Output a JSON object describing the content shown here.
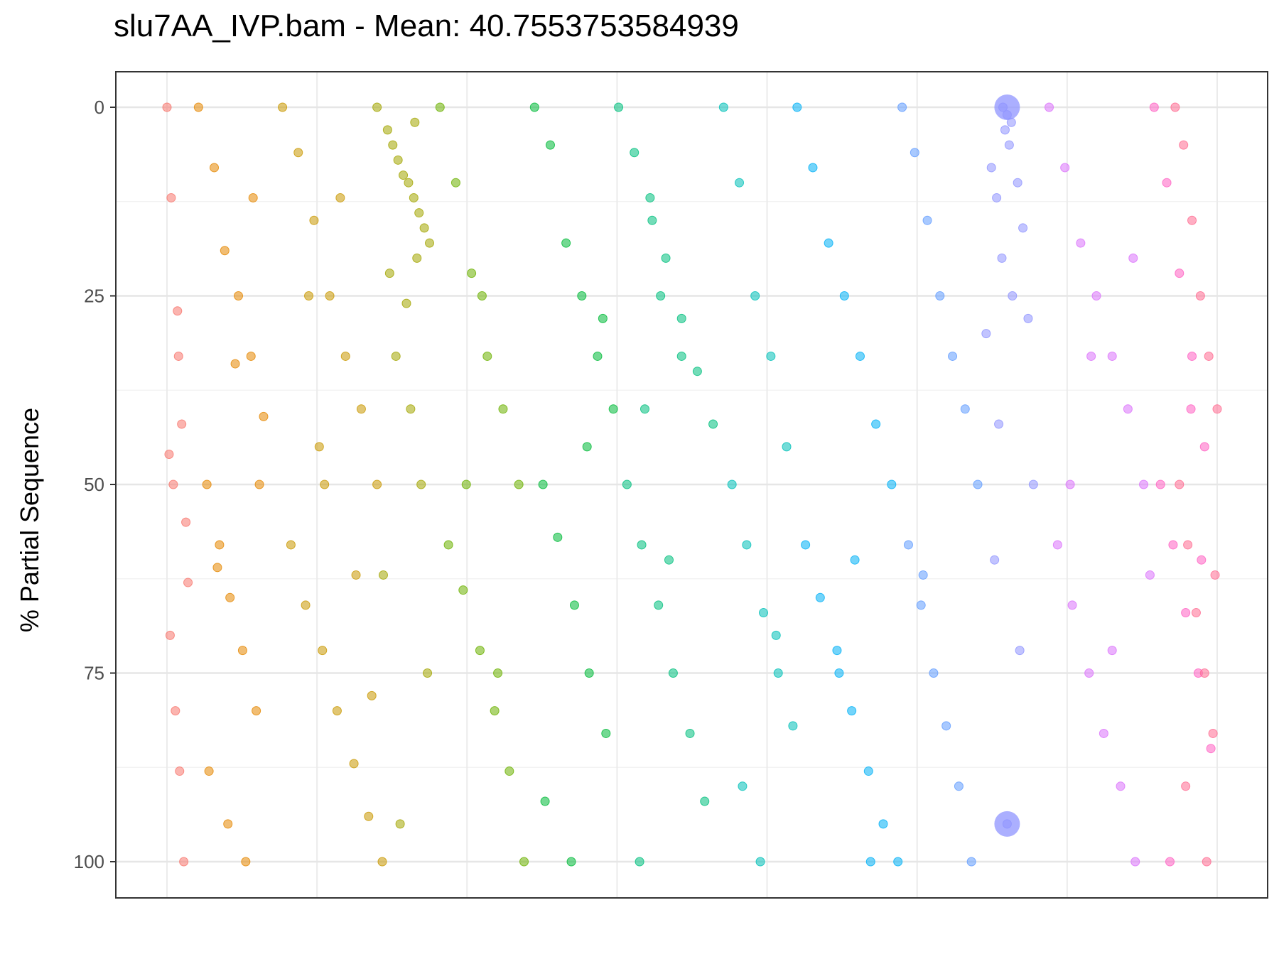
{
  "chart_data": {
    "type": "scatter",
    "title": "slu7AA_IVP.bam - Mean: 40.7553753584939",
    "xlabel": "",
    "ylabel": "% Partial Sequence",
    "ylim": [
      0,
      100
    ],
    "y_reversed": true,
    "y_ticks": [
      "0",
      "25",
      "50",
      "75",
      "100"
    ],
    "x_ticks": [],
    "grid": true,
    "point_alpha": 0.55,
    "series": [
      {
        "color": "#F8766D",
        "x": [
          0.0,
          0.004,
          0.01,
          0.014,
          0.018,
          0.02,
          0.003,
          0.008,
          0.012,
          0.016,
          0.006,
          0.002,
          0.011
        ],
        "y": [
          0,
          12,
          27,
          42,
          55,
          63,
          70,
          80,
          88,
          100,
          50,
          46,
          33
        ]
      },
      {
        "color": "#E58700",
        "x": [
          0.03,
          0.045,
          0.055,
          0.068,
          0.08,
          0.092,
          0.038,
          0.05,
          0.06,
          0.072,
          0.085,
          0.04,
          0.058,
          0.075,
          0.088,
          0.065,
          0.048,
          0.082
        ],
        "y": [
          0,
          8,
          19,
          25,
          33,
          41,
          50,
          58,
          65,
          72,
          80,
          88,
          95,
          100,
          50,
          34,
          61,
          12
        ]
      },
      {
        "color": "#C99800",
        "x": [
          0.11,
          0.125,
          0.14,
          0.155,
          0.17,
          0.185,
          0.2,
          0.118,
          0.132,
          0.148,
          0.162,
          0.178,
          0.192,
          0.205,
          0.135,
          0.15,
          0.165,
          0.18,
          0.195,
          0.145
        ],
        "y": [
          0,
          6,
          15,
          25,
          33,
          40,
          50,
          58,
          66,
          72,
          80,
          87,
          94,
          100,
          25,
          50,
          12,
          62,
          78,
          45
        ]
      },
      {
        "color": "#A3A500",
        "x": [
          0.2,
          0.21,
          0.22,
          0.23,
          0.24,
          0.25,
          0.215,
          0.225,
          0.235,
          0.245,
          0.212,
          0.228,
          0.238,
          0.218,
          0.232,
          0.242,
          0.206,
          0.248,
          0.222,
          0.236
        ],
        "y": [
          0,
          3,
          7,
          10,
          14,
          18,
          5,
          9,
          12,
          16,
          22,
          26,
          20,
          33,
          40,
          50,
          62,
          75,
          95,
          2
        ]
      },
      {
        "color": "#6BB100",
        "x": [
          0.26,
          0.275,
          0.29,
          0.305,
          0.32,
          0.335,
          0.268,
          0.282,
          0.298,
          0.312,
          0.326,
          0.34,
          0.285,
          0.3,
          0.315
        ],
        "y": [
          0,
          10,
          22,
          33,
          40,
          50,
          58,
          64,
          72,
          80,
          88,
          100,
          50,
          25,
          75
        ]
      },
      {
        "color": "#00BA38",
        "x": [
          0.35,
          0.365,
          0.38,
          0.395,
          0.41,
          0.425,
          0.358,
          0.372,
          0.388,
          0.402,
          0.418,
          0.36,
          0.385,
          0.4,
          0.415
        ],
        "y": [
          0,
          5,
          18,
          25,
          33,
          40,
          50,
          57,
          66,
          75,
          83,
          92,
          100,
          45,
          28
        ]
      },
      {
        "color": "#00BF7D",
        "x": [
          0.43,
          0.445,
          0.46,
          0.475,
          0.49,
          0.505,
          0.52,
          0.438,
          0.452,
          0.468,
          0.482,
          0.498,
          0.512,
          0.45,
          0.47,
          0.49,
          0.455,
          0.478,
          0.462
        ],
        "y": [
          0,
          6,
          12,
          20,
          28,
          35,
          42,
          50,
          58,
          66,
          75,
          83,
          92,
          100,
          25,
          33,
          40,
          60,
          15
        ]
      },
      {
        "color": "#00C0B8",
        "x": [
          0.53,
          0.545,
          0.56,
          0.575,
          0.59,
          0.538,
          0.552,
          0.568,
          0.582,
          0.596,
          0.548,
          0.565,
          0.58
        ],
        "y": [
          0,
          10,
          25,
          33,
          45,
          50,
          58,
          67,
          75,
          82,
          90,
          100,
          70
        ]
      },
      {
        "color": "#00B0F6",
        "x": [
          0.6,
          0.615,
          0.63,
          0.645,
          0.66,
          0.675,
          0.69,
          0.608,
          0.622,
          0.638,
          0.652,
          0.668,
          0.682,
          0.696,
          0.64,
          0.655,
          0.67
        ],
        "y": [
          0,
          8,
          18,
          25,
          33,
          42,
          50,
          58,
          65,
          72,
          80,
          88,
          95,
          100,
          75,
          60,
          100
        ]
      },
      {
        "color": "#619CFF",
        "x": [
          0.7,
          0.712,
          0.724,
          0.736,
          0.748,
          0.76,
          0.772,
          0.706,
          0.718,
          0.73,
          0.742,
          0.754,
          0.766,
          0.72
        ],
        "y": [
          0,
          6,
          15,
          25,
          33,
          40,
          50,
          58,
          66,
          75,
          82,
          90,
          100,
          62
        ]
      },
      {
        "color": "#8F94FF",
        "x": [
          0.796,
          0.8,
          0.804,
          0.798,
          0.802,
          0.785,
          0.79,
          0.81,
          0.815,
          0.795,
          0.805,
          0.78,
          0.82,
          0.8,
          0.825,
          0.788,
          0.812,
          0.792
        ],
        "y": [
          0,
          1,
          2,
          3,
          5,
          8,
          12,
          10,
          16,
          20,
          25,
          30,
          28,
          95,
          50,
          60,
          72,
          42
        ]
      },
      {
        "color": "#DB72FB",
        "x": [
          0.84,
          0.855,
          0.87,
          0.885,
          0.9,
          0.915,
          0.93,
          0.848,
          0.862,
          0.878,
          0.892,
          0.908,
          0.922,
          0.936,
          0.86,
          0.88,
          0.9,
          0.92
        ],
        "y": [
          0,
          8,
          18,
          25,
          33,
          40,
          50,
          58,
          66,
          75,
          83,
          90,
          100,
          62,
          50,
          33,
          72,
          20
        ]
      },
      {
        "color": "#FF61C3",
        "x": [
          0.94,
          0.952,
          0.964,
          0.976,
          0.988,
          0.946,
          0.958,
          0.97,
          0.982,
          0.994,
          0.955,
          0.975,
          0.985
        ],
        "y": [
          0,
          10,
          22,
          33,
          45,
          50,
          58,
          67,
          75,
          85,
          100,
          40,
          60
        ]
      },
      {
        "color": "#FF6C91",
        "x": [
          0.96,
          0.968,
          0.976,
          0.984,
          0.992,
          1.0,
          0.964,
          0.972,
          0.98,
          0.988,
          0.996,
          0.97,
          0.99,
          0.998
        ],
        "y": [
          0,
          5,
          15,
          25,
          33,
          40,
          50,
          58,
          67,
          75,
          83,
          90,
          100,
          62
        ]
      }
    ],
    "highlighted_points": [
      {
        "color": "#8F94FF",
        "x": 0.8,
        "y": 0
      },
      {
        "color": "#8F94FF",
        "x": 0.8,
        "y": 95
      }
    ]
  }
}
